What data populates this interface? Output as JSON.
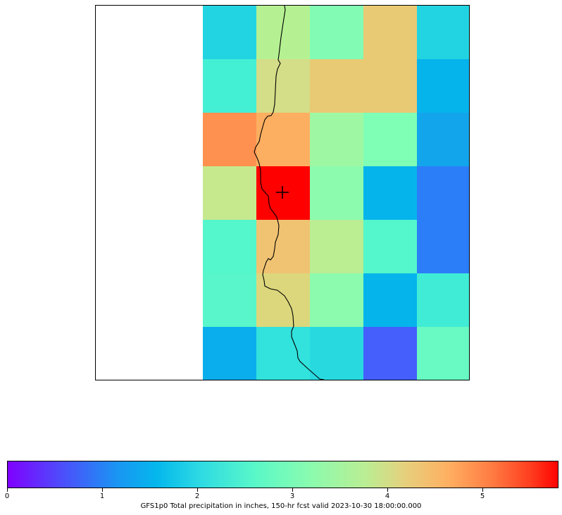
{
  "colorbar": {
    "label": "GFS1p0 Total precipitation in inches, 150-hr fcst valid 2023-10-30 18:00:00.000",
    "ticks": [
      "0",
      "1",
      "2",
      "3",
      "4",
      "5"
    ],
    "tick_values": [
      0,
      1,
      2,
      3,
      4,
      5
    ],
    "range": [
      0,
      5.8
    ],
    "colormap": "rainbow"
  },
  "map": {
    "grid": [
      [
        "#ffffff",
        "#ffffff",
        "#22d4e2",
        "#b5f192",
        "#82fcb5",
        "#e8c974",
        "#22d4e2"
      ],
      [
        "#ffffff",
        "#ffffff",
        "#44f0d4",
        "#d4dd88",
        "#e8c974",
        "#e8c974",
        "#06b4ec"
      ],
      [
        "#ffffff",
        "#ffffff",
        "#ff9150",
        "#fcaf61",
        "#9ef8a3",
        "#7ffeb6",
        "#12a5ec"
      ],
      [
        "#ffffff",
        "#ffffff",
        "#c6e98e",
        "#ff0000",
        "#8cfbae",
        "#06b4ec",
        "#2c7ef8"
      ],
      [
        "#ffffff",
        "#ffffff",
        "#54f6cb",
        "#f0c372",
        "#bbed93",
        "#54f6cb",
        "#2c7ef8"
      ],
      [
        "#ffffff",
        "#ffffff",
        "#58f6ca",
        "#dcd77c",
        "#8cfbae",
        "#06b4ec",
        "#40ecd5"
      ],
      [
        "#ffffff",
        "#ffffff",
        "#0aaeec",
        "#32e2dc",
        "#28dae0",
        "#445ffc",
        "#68faC2"
      ]
    ],
    "marker": "plus-marker",
    "coastline_color": "#000000"
  }
}
